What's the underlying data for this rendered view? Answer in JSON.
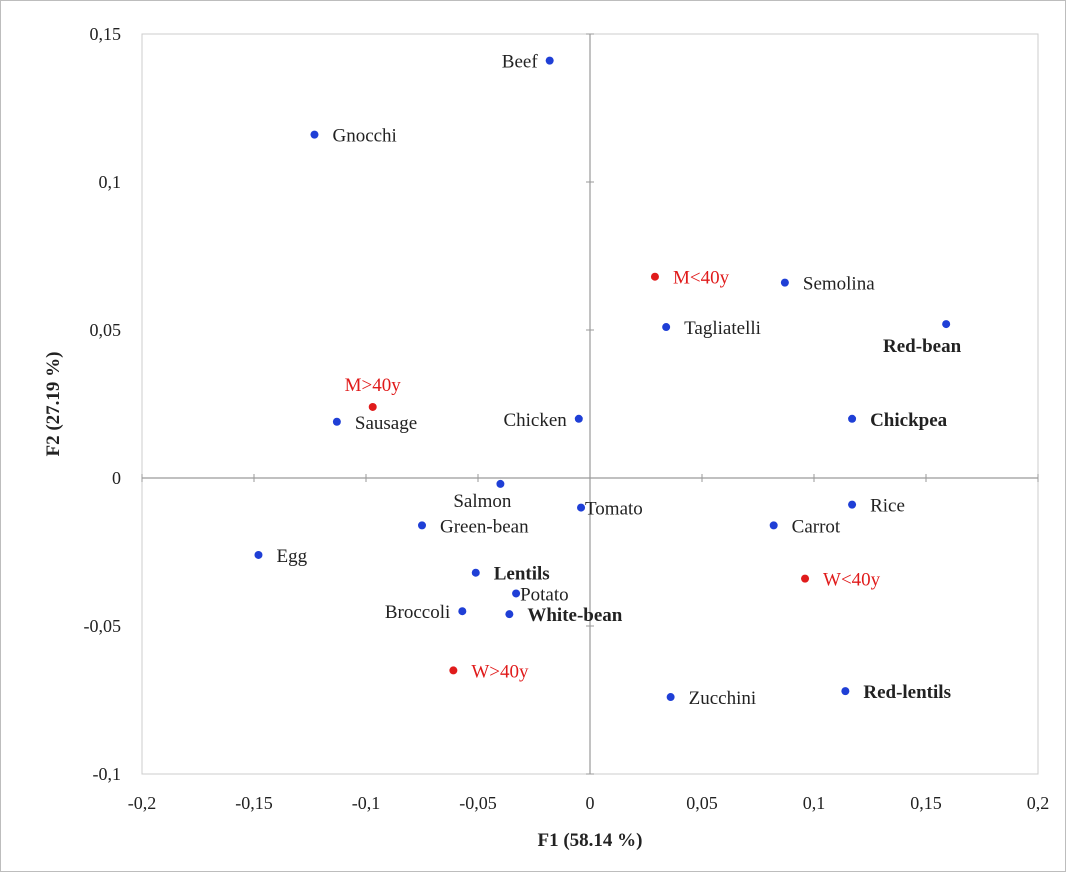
{
  "chart_data": {
    "type": "scatter",
    "title": "",
    "xlabel": "F1 (58.14 %)",
    "ylabel": "F2 (27.19 %)",
    "xlim": [
      -0.2,
      0.2
    ],
    "ylim": [
      -0.1,
      0.15
    ],
    "x_ticks": [
      {
        "value": -0.2,
        "label": "-0,2"
      },
      {
        "value": -0.15,
        "label": "-0,15"
      },
      {
        "value": -0.1,
        "label": "-0,1"
      },
      {
        "value": -0.05,
        "label": "-0,05"
      },
      {
        "value": 0,
        "label": "0"
      },
      {
        "value": 0.05,
        "label": "0,05"
      },
      {
        "value": 0.1,
        "label": "0,1"
      },
      {
        "value": 0.15,
        "label": "0,15"
      },
      {
        "value": 0.2,
        "label": "0,2"
      }
    ],
    "y_ticks": [
      {
        "value": -0.1,
        "label": "-0,1"
      },
      {
        "value": -0.05,
        "label": "-0,05"
      },
      {
        "value": 0,
        "label": "0"
      },
      {
        "value": 0.05,
        "label": "0,05"
      },
      {
        "value": 0.1,
        "label": "0,1"
      },
      {
        "value": 0.15,
        "label": "0,15"
      }
    ],
    "grid": false,
    "legend": "none",
    "colors": {
      "foods": "#1f3fd6",
      "groups": "#e01b1b"
    },
    "series": [
      {
        "color": "#1f3fd6",
        "points": [
          {
            "label": "Beef",
            "x": -0.018,
            "y": 0.141,
            "bold": false,
            "label_pos": "left"
          },
          {
            "label": "Gnocchi",
            "x": -0.123,
            "y": 0.116,
            "bold": false,
            "label_pos": "right"
          },
          {
            "label": "Semolina",
            "x": 0.087,
            "y": 0.066,
            "bold": false,
            "label_pos": "right"
          },
          {
            "label": "Tagliatelli",
            "x": 0.034,
            "y": 0.051,
            "bold": false,
            "label_pos": "right"
          },
          {
            "label": "Red-bean",
            "x": 0.159,
            "y": 0.052,
            "bold": true,
            "label_pos": "below-left"
          },
          {
            "label": "Chicken",
            "x": -0.005,
            "y": 0.02,
            "bold": false,
            "label_pos": "left"
          },
          {
            "label": "Chickpea",
            "x": 0.117,
            "y": 0.02,
            "bold": true,
            "label_pos": "right"
          },
          {
            "label": "Sausage",
            "x": -0.113,
            "y": 0.019,
            "bold": false,
            "label_pos": "right"
          },
          {
            "label": "Salmon",
            "x": -0.04,
            "y": -0.002,
            "bold": false,
            "label_pos": "below"
          },
          {
            "label": "Rice",
            "x": 0.117,
            "y": -0.009,
            "bold": false,
            "label_pos": "right"
          },
          {
            "label": "Tomato",
            "x": -0.004,
            "y": -0.01,
            "bold": false,
            "label_pos": "right-tight"
          },
          {
            "label": "Carrot",
            "x": 0.082,
            "y": -0.016,
            "bold": false,
            "label_pos": "right"
          },
          {
            "label": "Green-bean",
            "x": -0.075,
            "y": -0.016,
            "bold": false,
            "label_pos": "right"
          },
          {
            "label": "Egg",
            "x": -0.148,
            "y": -0.026,
            "bold": false,
            "label_pos": "right"
          },
          {
            "label": "Lentils",
            "x": -0.051,
            "y": -0.032,
            "bold": true,
            "label_pos": "right"
          },
          {
            "label": "Potato",
            "x": -0.033,
            "y": -0.039,
            "bold": false,
            "label_pos": "right-tight"
          },
          {
            "label": "Broccoli",
            "x": -0.057,
            "y": -0.045,
            "bold": false,
            "label_pos": "left"
          },
          {
            "label": "White-bean",
            "x": -0.036,
            "y": -0.046,
            "bold": true,
            "label_pos": "right"
          },
          {
            "label": "Zucchini",
            "x": 0.036,
            "y": -0.074,
            "bold": false,
            "label_pos": "right"
          },
          {
            "label": "Red-lentils",
            "x": 0.114,
            "y": -0.072,
            "bold": true,
            "label_pos": "right"
          }
        ]
      },
      {
        "color": "#e01b1b",
        "points": [
          {
            "label": "M<40y",
            "x": 0.029,
            "y": 0.068,
            "bold": false,
            "label_pos": "right"
          },
          {
            "label": "M>40y",
            "x": -0.097,
            "y": 0.024,
            "bold": false,
            "label_pos": "above"
          },
          {
            "label": "W<40y",
            "x": 0.096,
            "y": -0.034,
            "bold": false,
            "label_pos": "right"
          },
          {
            "label": "W>40y",
            "x": -0.061,
            "y": -0.065,
            "bold": false,
            "label_pos": "right"
          }
        ]
      }
    ]
  }
}
